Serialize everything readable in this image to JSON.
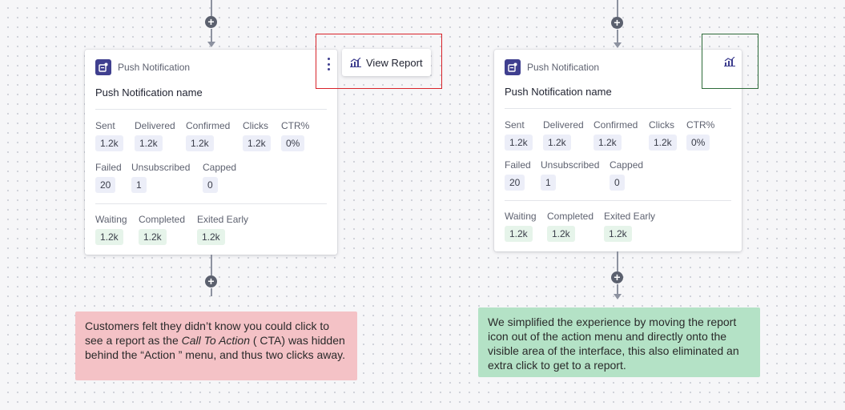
{
  "left": {
    "card": {
      "type_label": "Push Notification",
      "title": "Push Notification name",
      "stats_row1": [
        {
          "label": "Sent",
          "value": "1.2k"
        },
        {
          "label": "Delivered",
          "value": "1.2k"
        },
        {
          "label": "Confirmed",
          "value": "1.2k"
        },
        {
          "label": "Clicks",
          "value": "1.2k"
        },
        {
          "label": "CTR%",
          "value": "0%"
        }
      ],
      "stats_row2": [
        {
          "label": "Failed",
          "value": "20"
        },
        {
          "label": "Unsubscribed",
          "value": "1"
        },
        {
          "label": "Capped",
          "value": "0"
        }
      ],
      "stats_row3": [
        {
          "label": "Waiting",
          "value": "1.2k"
        },
        {
          "label": "Completed",
          "value": "1.2k"
        },
        {
          "label": "Exited Early",
          "value": "1.2k"
        }
      ]
    },
    "view_report_label": "View Report",
    "callout": {
      "line1": "Customers felt they didn’t know you could click to see a report as the ",
      "italic": "Call To Action",
      "line2": " ( CTA) was hidden behind the “Action ” menu, and thus two clicks away."
    }
  },
  "right": {
    "card": {
      "type_label": "Push Notification",
      "title": "Push Notification name",
      "stats_row1": [
        {
          "label": "Sent",
          "value": "1.2k"
        },
        {
          "label": "Delivered",
          "value": "1.2k"
        },
        {
          "label": "Confirmed",
          "value": "1.2k"
        },
        {
          "label": "Clicks",
          "value": "1.2k"
        },
        {
          "label": "CTR%",
          "value": "0%"
        }
      ],
      "stats_row2": [
        {
          "label": "Failed",
          "value": "20"
        },
        {
          "label": "Unsubscribed",
          "value": "1"
        },
        {
          "label": "Capped",
          "value": "0"
        }
      ],
      "stats_row3": [
        {
          "label": "Waiting",
          "value": "1.2k"
        },
        {
          "label": "Completed",
          "value": "1.2k"
        },
        {
          "label": "Exited Early",
          "value": "1.2k"
        }
      ]
    },
    "callout": {
      "text": "We simplified the experience by moving the report icon out of the action menu and directly onto the visible area of the interface, this also eliminated an extra click to get to a report."
    }
  },
  "icons": {
    "plus": "+",
    "type_icon": "push-notification-icon",
    "report_icon": "chart-icon",
    "menu_icon": "vertical-dots-icon"
  },
  "colors": {
    "accent": "#3f3f8f",
    "red_callout": "#f4c2c6",
    "green_callout": "#b4e2c6",
    "red_highlight": "#d8232a",
    "green_highlight": "#2e6b3a"
  }
}
